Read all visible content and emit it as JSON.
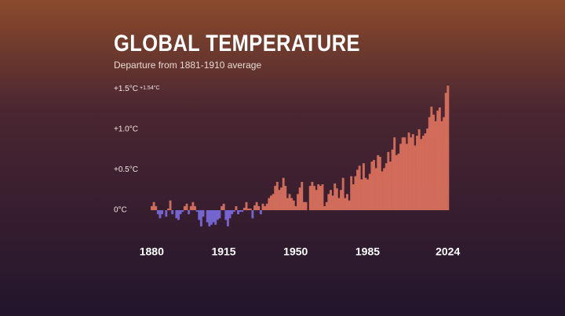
{
  "chart_data": {
    "type": "bar",
    "title": "GLOBAL TEMPERATURE",
    "subtitle": "Departure from 1881-1910 average",
    "annotation": "+1.54°C",
    "positive_color": "#e0735f",
    "negative_color": "#7b6be0",
    "xlim": [
      1880,
      2024
    ],
    "xticks": [
      1880,
      1915,
      1950,
      1985,
      2024
    ],
    "ylim": [
      -0.3,
      1.6
    ],
    "yticks": [
      {
        "value": 0,
        "label": "0°C"
      },
      {
        "value": 0.5,
        "label": "+0.5°C"
      },
      {
        "value": 1.0,
        "label": "+1.0°C"
      },
      {
        "value": 1.5,
        "label": "+1.5°C"
      }
    ],
    "grid": false,
    "x": [
      1880,
      1881,
      1882,
      1883,
      1884,
      1885,
      1886,
      1887,
      1888,
      1889,
      1890,
      1891,
      1892,
      1893,
      1894,
      1895,
      1896,
      1897,
      1898,
      1899,
      1900,
      1901,
      1902,
      1903,
      1904,
      1905,
      1906,
      1907,
      1908,
      1909,
      1910,
      1911,
      1912,
      1913,
      1914,
      1915,
      1916,
      1917,
      1918,
      1919,
      1920,
      1921,
      1922,
      1923,
      1924,
      1925,
      1926,
      1927,
      1928,
      1929,
      1930,
      1931,
      1932,
      1933,
      1934,
      1935,
      1936,
      1937,
      1938,
      1939,
      1940,
      1941,
      1942,
      1943,
      1944,
      1945,
      1946,
      1947,
      1948,
      1949,
      1950,
      1951,
      1952,
      1953,
      1954,
      1955,
      1956,
      1957,
      1958,
      1959,
      1960,
      1961,
      1962,
      1963,
      1964,
      1965,
      1966,
      1967,
      1968,
      1969,
      1970,
      1971,
      1972,
      1973,
      1974,
      1975,
      1976,
      1977,
      1978,
      1979,
      1980,
      1981,
      1982,
      1983,
      1984,
      1985,
      1986,
      1987,
      1988,
      1989,
      1990,
      1991,
      1992,
      1993,
      1994,
      1995,
      1996,
      1997,
      1998,
      1999,
      2000,
      2001,
      2002,
      2003,
      2004,
      2005,
      2006,
      2007,
      2008,
      2009,
      2010,
      2011,
      2012,
      2013,
      2014,
      2015,
      2016,
      2017,
      2018,
      2019,
      2020,
      2021,
      2022,
      2023,
      2024
    ],
    "values": [
      0.05,
      0.1,
      0.05,
      -0.05,
      -0.1,
      -0.05,
      0.0,
      -0.08,
      0.02,
      0.12,
      -0.05,
      0.0,
      -0.1,
      -0.12,
      -0.05,
      -0.02,
      0.05,
      0.08,
      -0.05,
      0.05,
      0.1,
      0.05,
      -0.02,
      -0.12,
      -0.2,
      -0.08,
      0.0,
      -0.15,
      -0.2,
      -0.18,
      -0.15,
      -0.18,
      -0.12,
      -0.1,
      0.05,
      0.08,
      -0.12,
      -0.2,
      -0.1,
      -0.05,
      -0.02,
      0.05,
      -0.05,
      -0.02,
      -0.02,
      0.03,
      0.1,
      0.02,
      0.02,
      -0.1,
      0.06,
      0.1,
      0.05,
      -0.05,
      0.08,
      0.05,
      0.08,
      0.15,
      0.18,
      0.2,
      0.3,
      0.35,
      0.25,
      0.28,
      0.4,
      0.3,
      0.15,
      0.2,
      0.15,
      0.12,
      0.05,
      0.2,
      0.28,
      0.35,
      0.1,
      0.1,
      0.0,
      0.3,
      0.35,
      0.3,
      0.25,
      0.32,
      0.3,
      0.32,
      0.05,
      0.1,
      0.2,
      0.25,
      0.18,
      0.33,
      0.27,
      0.15,
      0.25,
      0.4,
      0.15,
      0.2,
      0.12,
      0.42,
      0.32,
      0.42,
      0.5,
      0.55,
      0.38,
      0.58,
      0.4,
      0.38,
      0.45,
      0.6,
      0.62,
      0.52,
      0.68,
      0.66,
      0.48,
      0.52,
      0.58,
      0.72,
      0.6,
      0.75,
      0.9,
      0.68,
      0.7,
      0.82,
      0.9,
      0.9,
      0.82,
      0.96,
      0.9,
      0.94,
      0.8,
      0.92,
      1.0,
      0.88,
      0.92,
      0.95,
      1.01,
      1.15,
      1.28,
      1.18,
      1.1,
      1.23,
      1.27,
      1.1,
      1.15,
      1.45,
      1.54
    ]
  }
}
